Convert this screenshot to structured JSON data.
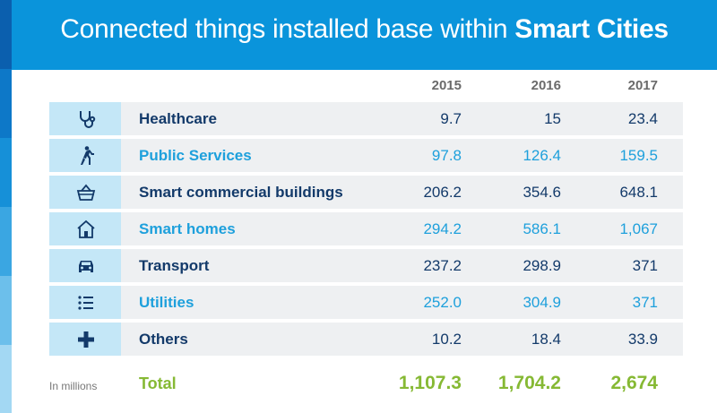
{
  "title": {
    "prefix": "Connected things installed base within ",
    "bold": "Smart Cities"
  },
  "note": "In millions",
  "colors": {
    "header": "#0a94db",
    "row_bg": "#eef0f2",
    "icon_bg": "#c4e7f7",
    "dark_text": "#133a6a",
    "light_text": "#1ea0dc",
    "total": "#86b934"
  },
  "chart_data": {
    "type": "table",
    "title": "Connected things installed base within Smart Cities",
    "columns": [
      "2015",
      "2016",
      "2017"
    ],
    "rows": [
      {
        "label": "Healthcare",
        "icon": "stethoscope-icon",
        "values": [
          "9.7",
          "15",
          "23.4"
        ]
      },
      {
        "label": "Public Services",
        "icon": "walking-person-icon",
        "values": [
          "97.8",
          "126.4",
          "159.5"
        ]
      },
      {
        "label": "Smart commercial buildings",
        "icon": "shopping-basket-icon",
        "values": [
          "206.2",
          "354.6",
          "648.1"
        ]
      },
      {
        "label": "Smart homes",
        "icon": "house-icon",
        "values": [
          "294.2",
          "586.1",
          "1,067"
        ]
      },
      {
        "label": "Transport",
        "icon": "car-icon",
        "values": [
          "237.2",
          "298.9",
          "371"
        ]
      },
      {
        "label": "Utilities",
        "icon": "list-icon",
        "values": [
          "252.0",
          "304.9",
          "371"
        ]
      },
      {
        "label": "Others",
        "icon": "plus-icon",
        "values": [
          "10.2",
          "18.4",
          "33.9"
        ]
      }
    ],
    "total": {
      "label": "Total",
      "values": [
        "1,107.3",
        "1,704.2",
        "2,674"
      ]
    }
  }
}
